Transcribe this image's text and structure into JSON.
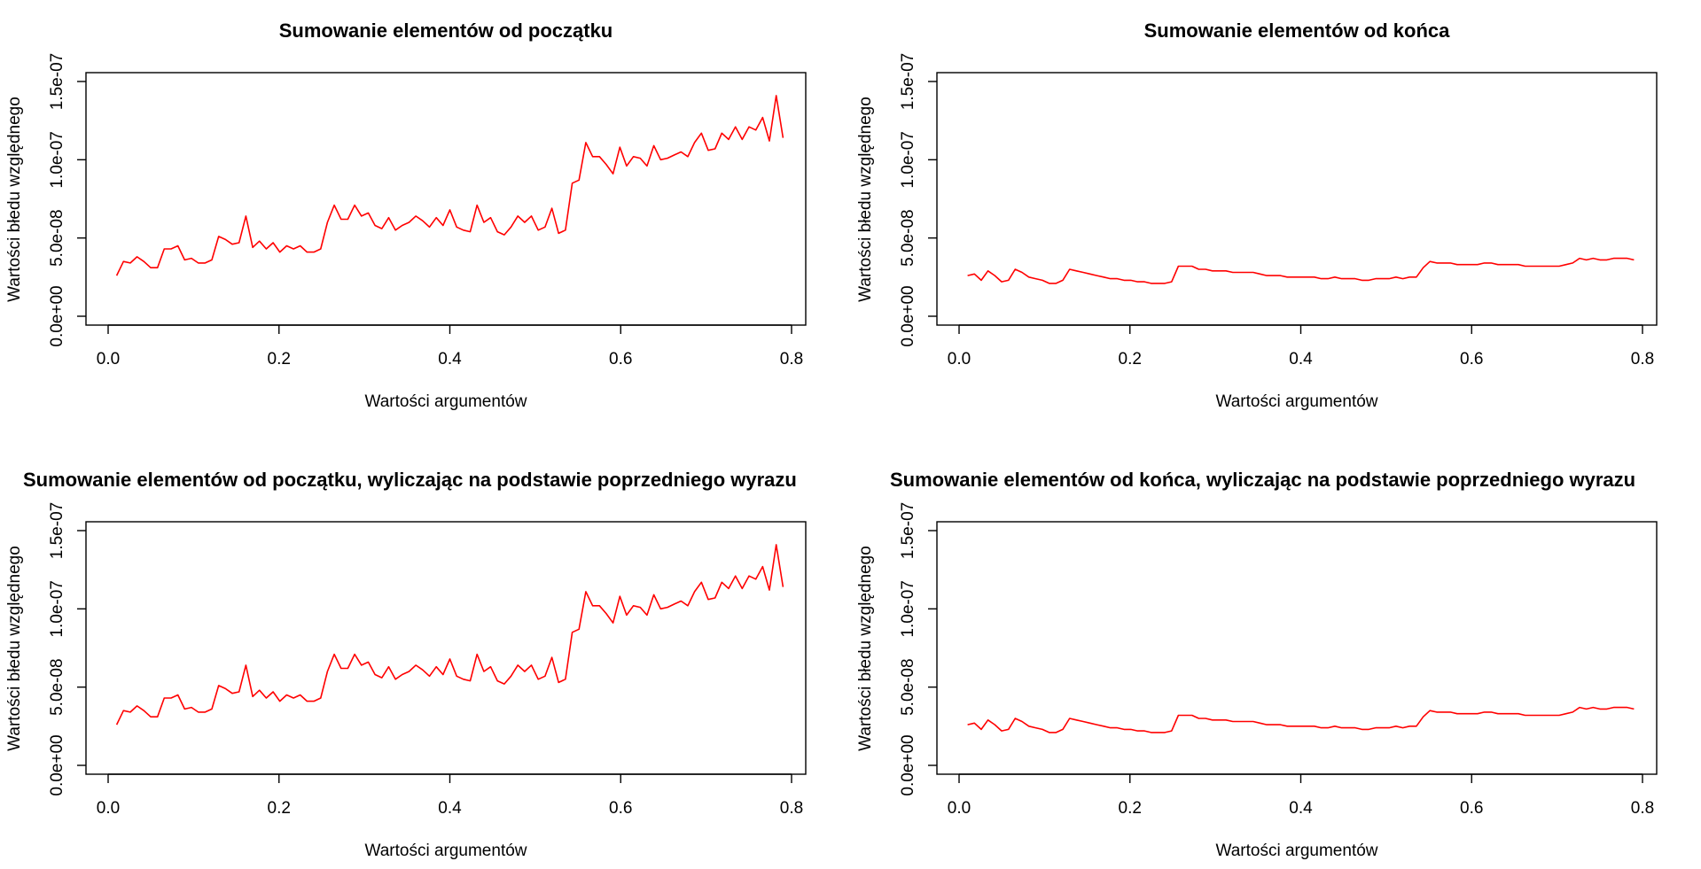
{
  "chart_data": [
    {
      "type": "line",
      "title": "Sumowanie elementów od początku",
      "xlabel": "Wartości argumentów",
      "ylabel": "Wartości błedu względnego",
      "xlim": [
        0,
        0.8
      ],
      "ylim": [
        0,
        1.5e-07
      ],
      "xticks": [
        "0.0",
        "0.2",
        "0.4",
        "0.6",
        "0.8"
      ],
      "yticks": [
        "0.0e+00",
        "5.0e-08",
        "1.0e-07",
        "1.5e-07"
      ],
      "color": "#ff0000",
      "series": [
        {
          "values": [
            2.6e-08,
            3.5e-08,
            3.4e-08,
            3.8e-08,
            3.5e-08,
            3.1e-08,
            3.1e-08,
            4.3e-08,
            4.3e-08,
            4.5e-08,
            3.6e-08,
            3.7e-08,
            3.4e-08,
            3.4e-08,
            3.6e-08,
            5.1e-08,
            4.9e-08,
            4.6e-08,
            4.7e-08,
            6.4e-08,
            4.4e-08,
            4.8e-08,
            4.3e-08,
            4.7e-08,
            4.1e-08,
            4.5e-08,
            4.3e-08,
            4.5e-08,
            4.1e-08,
            4.1e-08,
            4.3e-08,
            6e-08,
            7.1e-08,
            6.2e-08,
            6.2e-08,
            7.1e-08,
            6.4e-08,
            6.6e-08,
            5.8e-08,
            5.6e-08,
            6.3e-08,
            5.5e-08,
            5.8e-08,
            6e-08,
            6.4e-08,
            6.1e-08,
            5.7e-08,
            6.3e-08,
            5.8e-08,
            6.8e-08,
            5.7e-08,
            5.5e-08,
            5.4e-08,
            7.1e-08,
            6e-08,
            6.3e-08,
            5.4e-08,
            5.2e-08,
            5.7e-08,
            6.4e-08,
            6e-08,
            6.4e-08,
            5.5e-08,
            5.7e-08,
            6.9e-08,
            5.3e-08,
            5.5e-08,
            8.5e-08,
            8.7e-08,
            1.11e-07,
            1.02e-07,
            1.02e-07,
            9.7e-08,
            9.1e-08,
            1.08e-07,
            9.6e-08,
            1.02e-07,
            1.01e-07,
            9.6e-08,
            1.09e-07,
            1e-07,
            1.01e-07,
            1.03e-07,
            1.05e-07,
            1.02e-07,
            1.11e-07,
            1.17e-07,
            1.06e-07,
            1.07e-07,
            1.17e-07,
            1.13e-07,
            1.21e-07,
            1.13e-07,
            1.21e-07,
            1.19e-07,
            1.27e-07,
            1.12e-07,
            1.41e-07,
            1.14e-07
          ]
        }
      ]
    },
    {
      "type": "line",
      "title": "Sumowanie elementów od końca",
      "xlabel": "Wartości argumentów",
      "ylabel": "Wartości błedu względnego",
      "xlim": [
        0,
        0.8
      ],
      "ylim": [
        0,
        1.5e-07
      ],
      "xticks": [
        "0.0",
        "0.2",
        "0.4",
        "0.6",
        "0.8"
      ],
      "yticks": [
        "0.0e+00",
        "5.0e-08",
        "1.0e-07",
        "1.5e-07"
      ],
      "color": "#ff0000",
      "series": [
        {
          "values": [
            2.6e-08,
            2.7e-08,
            2.3e-08,
            2.9e-08,
            2.6e-08,
            2.2e-08,
            2.3e-08,
            3e-08,
            2.8e-08,
            2.5e-08,
            2.4e-08,
            2.3e-08,
            2.1e-08,
            2.1e-08,
            2.3e-08,
            3e-08,
            2.9e-08,
            2.8e-08,
            2.7e-08,
            2.6e-08,
            2.5e-08,
            2.4e-08,
            2.4e-08,
            2.3e-08,
            2.3e-08,
            2.2e-08,
            2.2e-08,
            2.1e-08,
            2.1e-08,
            2.1e-08,
            2.2e-08,
            3.2e-08,
            3.2e-08,
            3.2e-08,
            3e-08,
            3e-08,
            2.9e-08,
            2.9e-08,
            2.9e-08,
            2.8e-08,
            2.8e-08,
            2.8e-08,
            2.8e-08,
            2.7e-08,
            2.6e-08,
            2.6e-08,
            2.6e-08,
            2.5e-08,
            2.5e-08,
            2.5e-08,
            2.5e-08,
            2.5e-08,
            2.4e-08,
            2.4e-08,
            2.5e-08,
            2.4e-08,
            2.4e-08,
            2.4e-08,
            2.3e-08,
            2.3e-08,
            2.4e-08,
            2.4e-08,
            2.4e-08,
            2.5e-08,
            2.4e-08,
            2.5e-08,
            2.5e-08,
            3.1e-08,
            3.5e-08,
            3.4e-08,
            3.4e-08,
            3.4e-08,
            3.3e-08,
            3.3e-08,
            3.3e-08,
            3.3e-08,
            3.4e-08,
            3.4e-08,
            3.3e-08,
            3.3e-08,
            3.3e-08,
            3.3e-08,
            3.2e-08,
            3.2e-08,
            3.2e-08,
            3.2e-08,
            3.2e-08,
            3.2e-08,
            3.3e-08,
            3.4e-08,
            3.7e-08,
            3.6e-08,
            3.7e-08,
            3.6e-08,
            3.6e-08,
            3.7e-08,
            3.7e-08,
            3.7e-08,
            3.6e-08
          ]
        }
      ]
    },
    {
      "type": "line",
      "title": "Sumowanie elementów od początku, wyliczając na podstawie poprzedniego wyrazu",
      "xlabel": "Wartości argumentów",
      "ylabel": "Wartości błedu względnego",
      "xlim": [
        0,
        0.8
      ],
      "ylim": [
        0,
        1.5e-07
      ],
      "xticks": [
        "0.0",
        "0.2",
        "0.4",
        "0.6",
        "0.8"
      ],
      "yticks": [
        "0.0e+00",
        "5.0e-08",
        "1.0e-07",
        "1.5e-07"
      ],
      "color": "#ff0000",
      "series": [
        {
          "values": [
            2.6e-08,
            3.5e-08,
            3.4e-08,
            3.8e-08,
            3.5e-08,
            3.1e-08,
            3.1e-08,
            4.3e-08,
            4.3e-08,
            4.5e-08,
            3.6e-08,
            3.7e-08,
            3.4e-08,
            3.4e-08,
            3.6e-08,
            5.1e-08,
            4.9e-08,
            4.6e-08,
            4.7e-08,
            6.4e-08,
            4.4e-08,
            4.8e-08,
            4.3e-08,
            4.7e-08,
            4.1e-08,
            4.5e-08,
            4.3e-08,
            4.5e-08,
            4.1e-08,
            4.1e-08,
            4.3e-08,
            6e-08,
            7.1e-08,
            6.2e-08,
            6.2e-08,
            7.1e-08,
            6.4e-08,
            6.6e-08,
            5.8e-08,
            5.6e-08,
            6.3e-08,
            5.5e-08,
            5.8e-08,
            6e-08,
            6.4e-08,
            6.1e-08,
            5.7e-08,
            6.3e-08,
            5.8e-08,
            6.8e-08,
            5.7e-08,
            5.5e-08,
            5.4e-08,
            7.1e-08,
            6e-08,
            6.3e-08,
            5.4e-08,
            5.2e-08,
            5.7e-08,
            6.4e-08,
            6e-08,
            6.4e-08,
            5.5e-08,
            5.7e-08,
            6.9e-08,
            5.3e-08,
            5.5e-08,
            8.5e-08,
            8.7e-08,
            1.11e-07,
            1.02e-07,
            1.02e-07,
            9.7e-08,
            9.1e-08,
            1.08e-07,
            9.6e-08,
            1.02e-07,
            1.01e-07,
            9.6e-08,
            1.09e-07,
            1e-07,
            1.01e-07,
            1.03e-07,
            1.05e-07,
            1.02e-07,
            1.11e-07,
            1.17e-07,
            1.06e-07,
            1.07e-07,
            1.17e-07,
            1.13e-07,
            1.21e-07,
            1.13e-07,
            1.21e-07,
            1.19e-07,
            1.27e-07,
            1.12e-07,
            1.41e-07,
            1.14e-07
          ]
        }
      ]
    },
    {
      "type": "line",
      "title": "Sumowanie elementów od końca, wyliczając na podstawie poprzedniego wyrazu",
      "xlabel": "Wartości argumentów",
      "ylabel": "Wartości błedu względnego",
      "xlim": [
        0,
        0.8
      ],
      "ylim": [
        0,
        1.5e-07
      ],
      "xticks": [
        "0.0",
        "0.2",
        "0.4",
        "0.6",
        "0.8"
      ],
      "yticks": [
        "0.0e+00",
        "5.0e-08",
        "1.0e-07",
        "1.5e-07"
      ],
      "color": "#ff0000",
      "series": [
        {
          "values": [
            2.6e-08,
            2.7e-08,
            2.3e-08,
            2.9e-08,
            2.6e-08,
            2.2e-08,
            2.3e-08,
            3e-08,
            2.8e-08,
            2.5e-08,
            2.4e-08,
            2.3e-08,
            2.1e-08,
            2.1e-08,
            2.3e-08,
            3e-08,
            2.9e-08,
            2.8e-08,
            2.7e-08,
            2.6e-08,
            2.5e-08,
            2.4e-08,
            2.4e-08,
            2.3e-08,
            2.3e-08,
            2.2e-08,
            2.2e-08,
            2.1e-08,
            2.1e-08,
            2.1e-08,
            2.2e-08,
            3.2e-08,
            3.2e-08,
            3.2e-08,
            3e-08,
            3e-08,
            2.9e-08,
            2.9e-08,
            2.9e-08,
            2.8e-08,
            2.8e-08,
            2.8e-08,
            2.8e-08,
            2.7e-08,
            2.6e-08,
            2.6e-08,
            2.6e-08,
            2.5e-08,
            2.5e-08,
            2.5e-08,
            2.5e-08,
            2.5e-08,
            2.4e-08,
            2.4e-08,
            2.5e-08,
            2.4e-08,
            2.4e-08,
            2.4e-08,
            2.3e-08,
            2.3e-08,
            2.4e-08,
            2.4e-08,
            2.4e-08,
            2.5e-08,
            2.4e-08,
            2.5e-08,
            2.5e-08,
            3.1e-08,
            3.5e-08,
            3.4e-08,
            3.4e-08,
            3.4e-08,
            3.3e-08,
            3.3e-08,
            3.3e-08,
            3.3e-08,
            3.4e-08,
            3.4e-08,
            3.3e-08,
            3.3e-08,
            3.3e-08,
            3.3e-08,
            3.2e-08,
            3.2e-08,
            3.2e-08,
            3.2e-08,
            3.2e-08,
            3.2e-08,
            3.3e-08,
            3.4e-08,
            3.7e-08,
            3.6e-08,
            3.7e-08,
            3.6e-08,
            3.6e-08,
            3.7e-08,
            3.7e-08,
            3.7e-08,
            3.6e-08
          ]
        }
      ]
    }
  ]
}
